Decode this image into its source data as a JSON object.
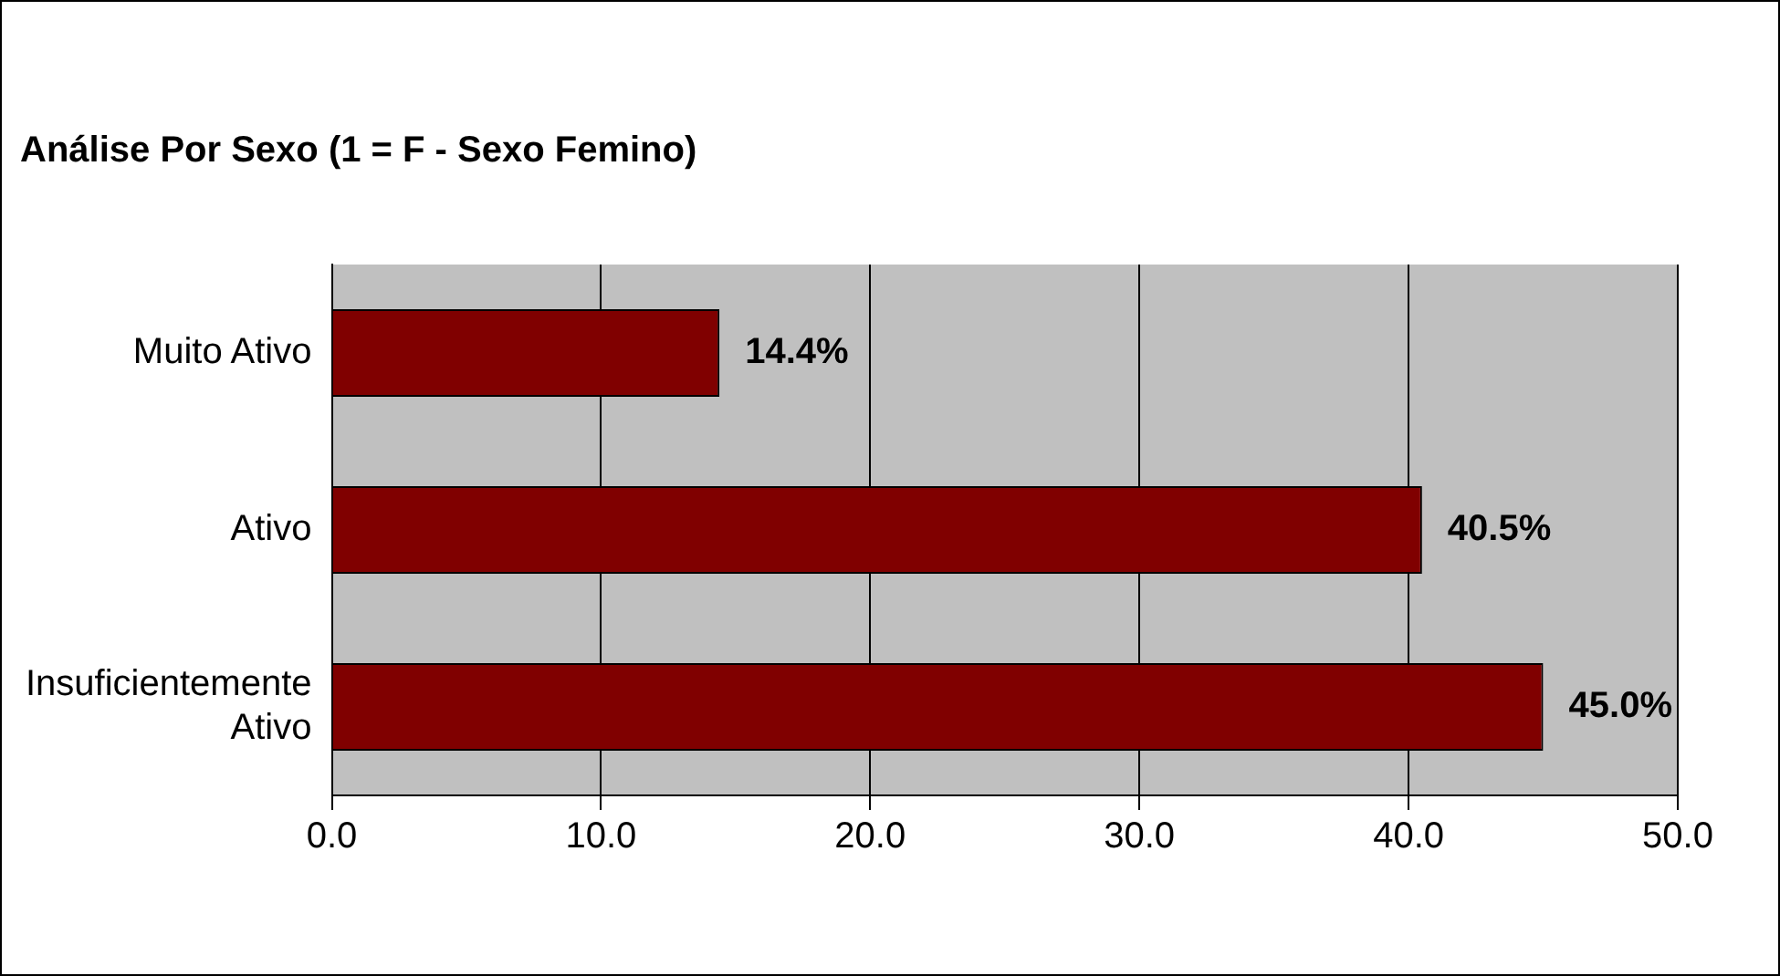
{
  "chart_data": {
    "type": "bar",
    "orientation": "horizontal",
    "title": "Análise Por Sexo (1 = F - Sexo Femino)",
    "categories": [
      "Muito Ativo",
      "Ativo",
      "Insuficientemente Ativo"
    ],
    "values": [
      14.4,
      40.5,
      45.0
    ],
    "color": "#800000",
    "value_labels": [
      "14.4%",
      "40.5%",
      "45.0%"
    ],
    "xlim": [
      0,
      50
    ],
    "xticks": [
      {
        "value": 0,
        "label": "0.0"
      },
      {
        "value": 10,
        "label": "10.0"
      },
      {
        "value": 20,
        "label": "20.0"
      },
      {
        "value": 30,
        "label": "30.0"
      },
      {
        "value": 40,
        "label": "40.0"
      },
      {
        "value": 50,
        "label": "50.0"
      }
    ],
    "grid": "x",
    "legend": false
  }
}
